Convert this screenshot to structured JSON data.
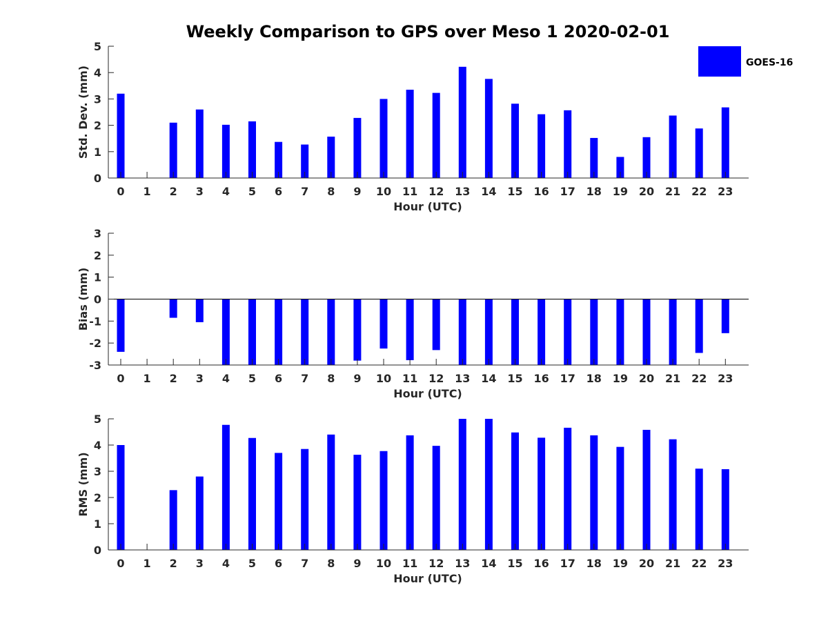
{
  "title": "Weekly Comparison to GPS over Meso 1 2020-02-01",
  "legend": {
    "label": "GOES-16",
    "color": "#0000ff",
    "placement": "top-right"
  },
  "chart_data": [
    {
      "type": "bar",
      "name": "std_dev",
      "categories": [
        "0",
        "1",
        "2",
        "3",
        "4",
        "5",
        "6",
        "7",
        "8",
        "9",
        "10",
        "11",
        "12",
        "13",
        "14",
        "15",
        "16",
        "17",
        "18",
        "19",
        "20",
        "21",
        "22",
        "23"
      ],
      "series": [
        {
          "name": "GOES-16",
          "values": [
            3.2,
            null,
            2.1,
            2.6,
            2.02,
            2.15,
            1.37,
            1.27,
            1.57,
            2.28,
            3.0,
            3.35,
            3.23,
            4.22,
            3.76,
            2.82,
            2.42,
            2.57,
            1.52,
            0.8,
            1.55,
            2.37,
            1.88,
            2.68
          ]
        }
      ],
      "xlabel": "Hour (UTC)",
      "ylabel": "Std. Dev. (mm)",
      "ylim": [
        0,
        5
      ],
      "yticks": [
        "0",
        "1",
        "2",
        "3",
        "4",
        "5"
      ],
      "grid": false
    },
    {
      "type": "bar",
      "name": "bias",
      "categories": [
        "0",
        "1",
        "2",
        "3",
        "4",
        "5",
        "6",
        "7",
        "8",
        "9",
        "10",
        "11",
        "12",
        "13",
        "14",
        "15",
        "16",
        "17",
        "18",
        "19",
        "20",
        "21",
        "22",
        "23"
      ],
      "series": [
        {
          "name": "GOES-16",
          "values": [
            -2.4,
            null,
            -0.85,
            -1.05,
            -3.0,
            -3.0,
            -3.0,
            -3.0,
            -3.0,
            -2.8,
            -2.25,
            -2.78,
            -2.32,
            -3.0,
            -3.0,
            -3.0,
            -3.0,
            -3.0,
            -3.0,
            -3.0,
            -3.0,
            -3.0,
            -2.45,
            -1.55
          ]
        }
      ],
      "xlabel": "Hour (UTC)",
      "ylabel": "Bias (mm)",
      "ylim": [
        -3,
        3
      ],
      "yticks": [
        "-3",
        "-2",
        "-1",
        "0",
        "1",
        "2",
        "3"
      ],
      "grid": false
    },
    {
      "type": "bar",
      "name": "rms",
      "categories": [
        "0",
        "1",
        "2",
        "3",
        "4",
        "5",
        "6",
        "7",
        "8",
        "9",
        "10",
        "11",
        "12",
        "13",
        "14",
        "15",
        "16",
        "17",
        "18",
        "19",
        "20",
        "21",
        "22",
        "23"
      ],
      "series": [
        {
          "name": "GOES-16",
          "values": [
            4.0,
            null,
            2.28,
            2.8,
            4.77,
            4.27,
            3.7,
            3.85,
            4.4,
            3.63,
            3.77,
            4.37,
            3.97,
            5.0,
            5.0,
            4.48,
            4.28,
            4.66,
            4.37,
            3.93,
            4.58,
            4.22,
            3.1,
            3.08
          ]
        }
      ],
      "xlabel": "Hour (UTC)",
      "ylabel": "RMS (mm)",
      "ylim": [
        0,
        5
      ],
      "yticks": [
        "0",
        "1",
        "2",
        "3",
        "4",
        "5"
      ],
      "grid": false
    }
  ]
}
